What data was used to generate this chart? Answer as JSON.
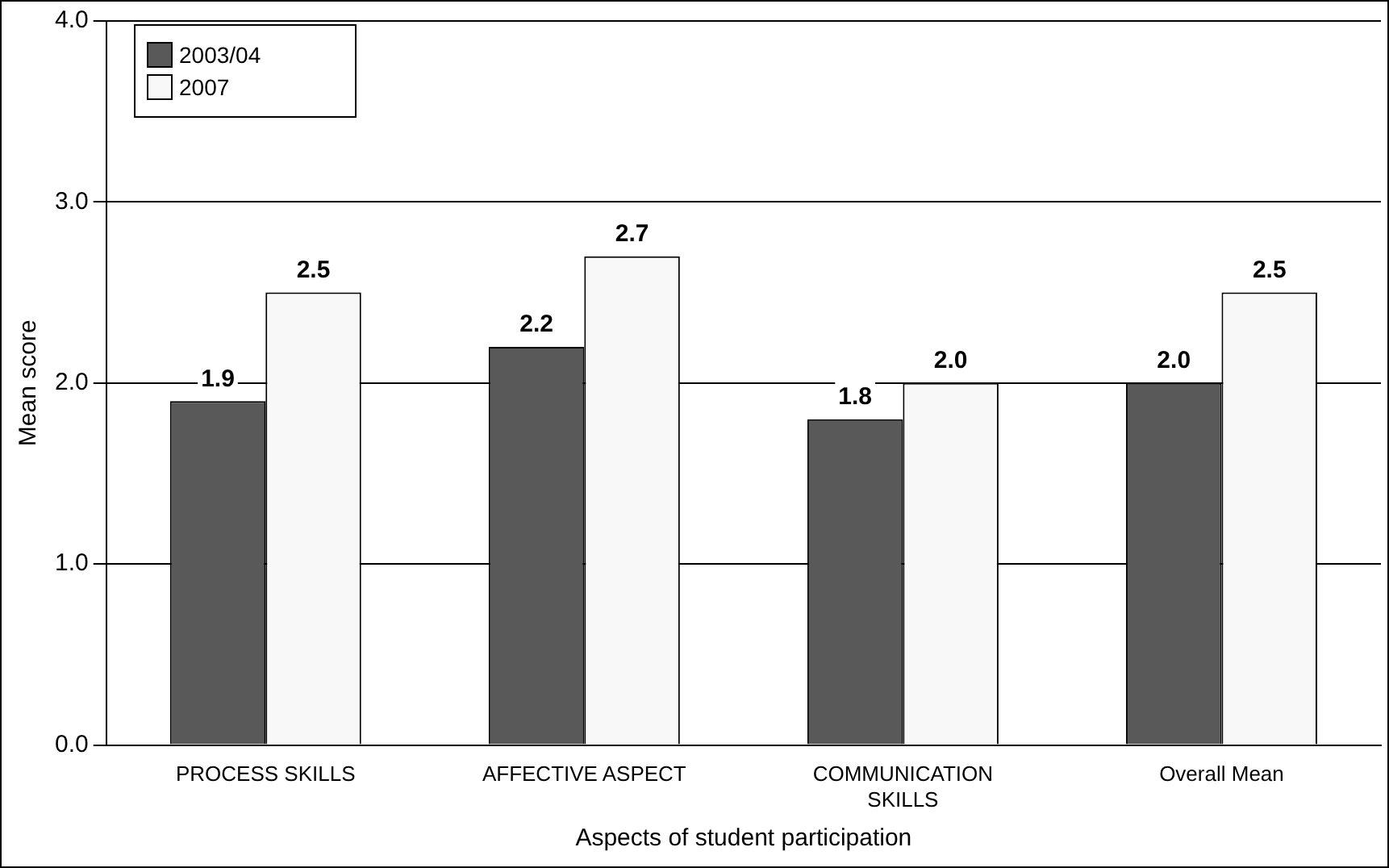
{
  "chart_data": {
    "type": "bar",
    "xlabel": "Aspects of student participation",
    "ylabel": "Mean score",
    "categories": [
      "PROCESS SKILLS",
      "AFFECTIVE ASPECT",
      "COMMUNICATION SKILLS",
      "Overall Mean"
    ],
    "series": [
      {
        "name": "2003/04",
        "color": "#595959",
        "values": [
          1.9,
          2.2,
          1.8,
          2.0
        ],
        "value_labels": [
          "1.9",
          "2.2",
          "1.8",
          "2.0"
        ]
      },
      {
        "name": "2007",
        "color": "#f8f8f8",
        "values": [
          2.5,
          2.7,
          2.0,
          2.5
        ],
        "value_labels": [
          "2.5",
          "2.7",
          "2.0",
          "2.5"
        ]
      }
    ],
    "ylim": [
      0,
      4
    ],
    "yticks": [
      {
        "value": 0,
        "label": "0.0"
      },
      {
        "value": 1,
        "label": "1.0"
      },
      {
        "value": 2,
        "label": "2.0"
      },
      {
        "value": 3,
        "label": "3.0"
      },
      {
        "value": 4,
        "label": "4.0"
      }
    ],
    "grid": "y",
    "legend": "top left"
  }
}
